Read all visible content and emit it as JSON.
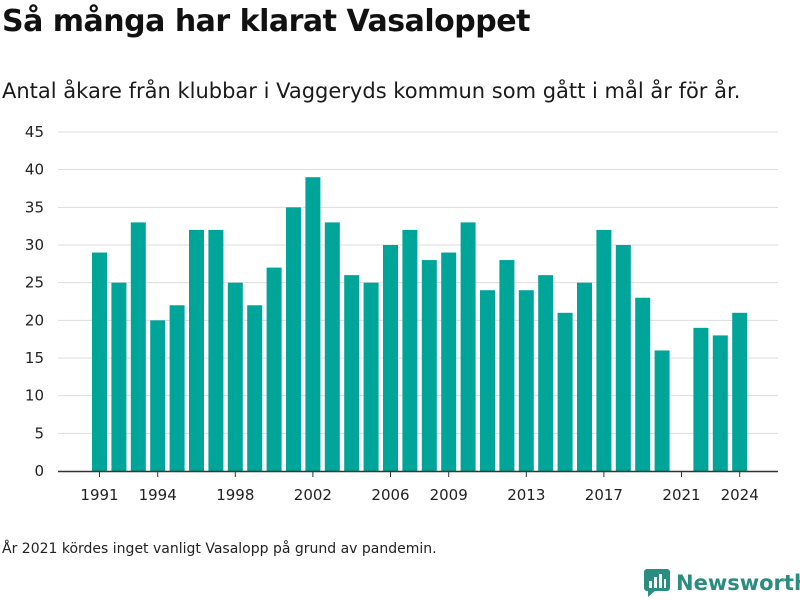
{
  "header": {
    "title": "Så många har klarat Vasaloppet",
    "subtitle": "Antal åkare från klubbar i Vaggeryds kommun som gått i mål år för år."
  },
  "footer": {
    "note": "År 2021 kördes inget vanligt Vasalopp på grund av pandemin.",
    "brand": "Newsworthy",
    "brand_icon": "newsworthy-logo-icon"
  },
  "colors": {
    "bar": "#00a59a",
    "brand": "#2b8c80",
    "grid": "#dddddd",
    "axis": "#333333"
  },
  "chart_data": {
    "type": "bar",
    "categories": [
      1991,
      1992,
      1993,
      1994,
      1995,
      1996,
      1997,
      1998,
      1999,
      2000,
      2001,
      2002,
      2003,
      2004,
      2005,
      2006,
      2007,
      2008,
      2009,
      2010,
      2011,
      2012,
      2013,
      2014,
      2015,
      2016,
      2017,
      2018,
      2019,
      2020,
      2021,
      2022,
      2023,
      2024
    ],
    "values": [
      29,
      25,
      33,
      20,
      22,
      32,
      32,
      25,
      22,
      27,
      35,
      39,
      33,
      26,
      25,
      30,
      32,
      28,
      29,
      33,
      24,
      28,
      24,
      26,
      21,
      25,
      32,
      30,
      23,
      16,
      0,
      19,
      18,
      21
    ],
    "title": "Så många har klarat Vasaloppet",
    "xlabel": "",
    "ylabel": "",
    "ylim": [
      0,
      45
    ],
    "y_ticks": [
      0,
      5,
      10,
      15,
      20,
      25,
      30,
      35,
      40,
      45
    ],
    "x_tick_labels": [
      "1991",
      "1994",
      "1998",
      "2002",
      "2006",
      "2009",
      "2013",
      "2017",
      "2021",
      "2024"
    ],
    "grid": true,
    "legend": "none"
  }
}
